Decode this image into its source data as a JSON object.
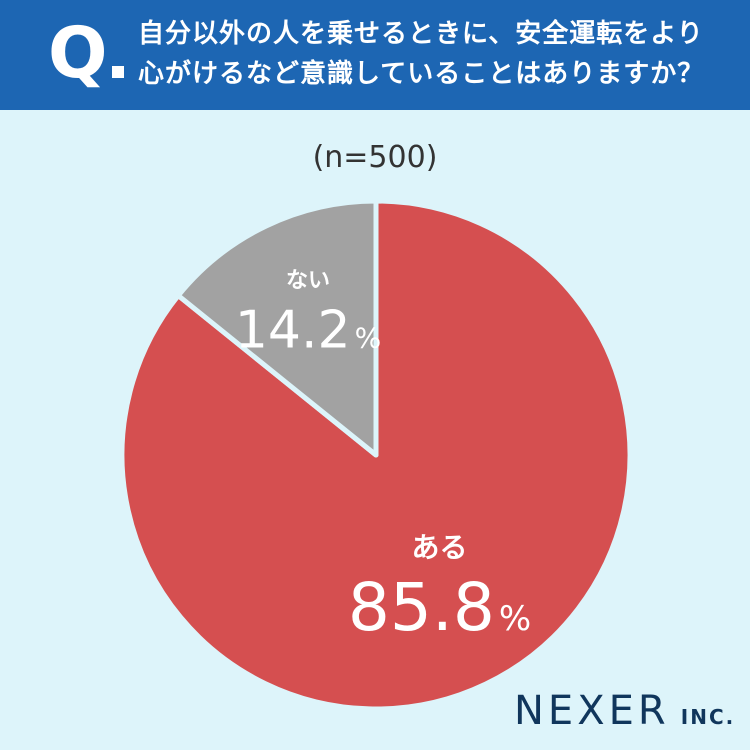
{
  "header": {
    "q_mark": "Q",
    "question": "自分以外の人を乗せるときに、安全運転をより心がけるなど意識していることはありますか？"
  },
  "sample_label": "(n=500)",
  "logo": {
    "main": "NEXER",
    "sub": "INC."
  },
  "colors": {
    "header_bg": "#1d66b3",
    "background": "#ddf4fa",
    "yes": "#d54f50",
    "no": "#a2a2a2",
    "slice_border": "#ddf4fa"
  },
  "chart_data": {
    "type": "pie",
    "categories": [
      "ある",
      "ない"
    ],
    "values": [
      85.8,
      14.2
    ],
    "unit": "%",
    "value_labels": [
      "85.8",
      "14.2"
    ],
    "start": "12 o'clock",
    "direction": "clockwise"
  }
}
